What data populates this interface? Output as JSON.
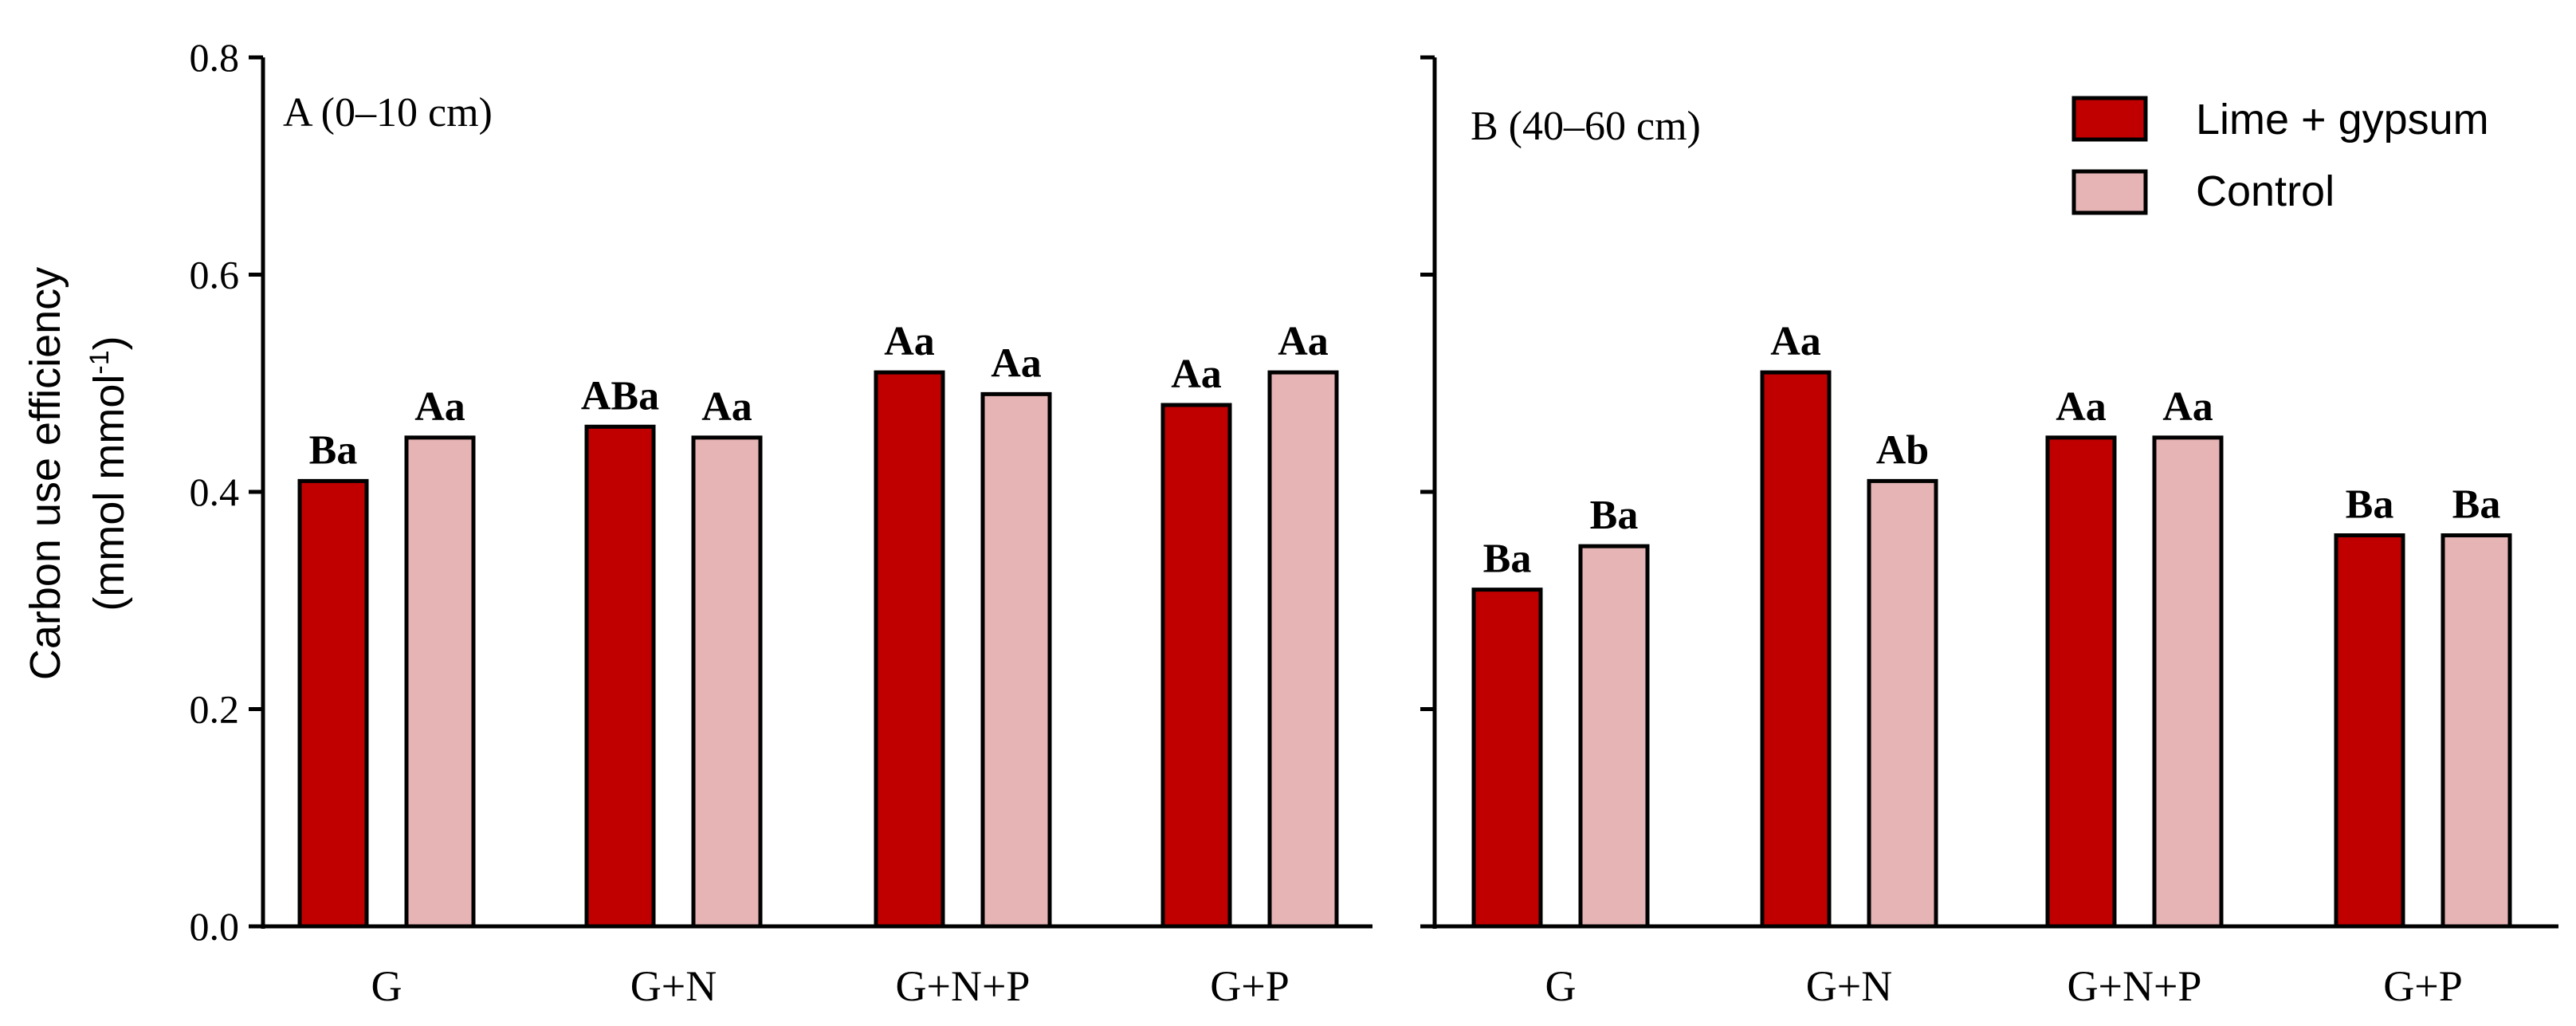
{
  "chart_data": {
    "type": "bar",
    "ylabel_line1": "Carbon use efficiency",
    "ylabel_line2_pre": "(mmol mmol",
    "ylabel_line2_sup": "-1",
    "ylabel_line2_post": ")",
    "ylim": [
      0,
      0.8
    ],
    "yticks": [
      "0.0",
      "0.2",
      "0.4",
      "0.6",
      "0.8"
    ],
    "yticks_values": [
      0,
      0.2,
      0.4,
      0.6,
      0.8
    ],
    "legend": {
      "position": "top-right",
      "entries": [
        {
          "name": "Lime + gypsum",
          "color": "#c00000"
        },
        {
          "name": "Control",
          "color": "#e6b4b4"
        }
      ]
    },
    "panels": [
      {
        "title": "A (0–10 cm)",
        "categories": [
          "G",
          "G+N",
          "G+N+P",
          "G+P"
        ],
        "series": [
          {
            "name": "Lime + gypsum",
            "values": [
              0.41,
              0.46,
              0.51,
              0.48
            ],
            "labels": [
              "Ba",
              "ABa",
              "Aa",
              "Aa"
            ]
          },
          {
            "name": "Control",
            "values": [
              0.45,
              0.45,
              0.49,
              0.51
            ],
            "labels": [
              "Aa",
              "Aa",
              "Aa",
              "Aa"
            ]
          }
        ]
      },
      {
        "title": "B (40–60 cm)",
        "categories": [
          "G",
          "G+N",
          "G+N+P",
          "G+P"
        ],
        "series": [
          {
            "name": "Lime + gypsum",
            "values": [
              0.31,
              0.51,
              0.45,
              0.36
            ],
            "labels": [
              "Ba",
              "Aa",
              "Aa",
              "Ba"
            ]
          },
          {
            "name": "Control",
            "values": [
              0.35,
              0.41,
              0.45,
              0.36
            ],
            "labels": [
              "Ba",
              "Ab",
              "Aa",
              "Ba"
            ]
          }
        ]
      }
    ]
  }
}
